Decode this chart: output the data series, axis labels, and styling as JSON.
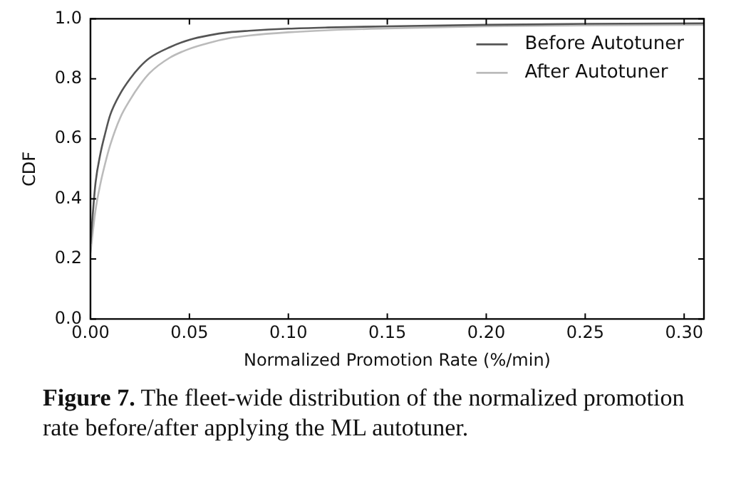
{
  "chart_data": {
    "type": "line",
    "xlabel": "Normalized Promotion Rate (%/min)",
    "ylabel": "CDF",
    "annotations": [
      "Figure 7.",
      "The fleet-wide distribution of the normalized promotion rate before/after applying the ML autotuner."
    ],
    "xlim": [
      0,
      0.31
    ],
    "xticks": [
      {
        "value": 0,
        "label": "0.00"
      },
      {
        "value": 0.05,
        "label": "0.05"
      },
      {
        "value": 0.1,
        "label": "0.10"
      },
      {
        "value": 0.15,
        "label": "0.15"
      },
      {
        "value": 0.2,
        "label": "0.20"
      },
      {
        "value": 0.25,
        "label": "0.25"
      },
      {
        "value": 0.3,
        "label": "0.30"
      }
    ],
    "ylim": [
      0,
      1
    ],
    "yticks": [
      {
        "value": 0,
        "label": "0.0"
      },
      {
        "value": 0.2,
        "label": "0.2"
      },
      {
        "value": 0.4,
        "label": "0.4"
      },
      {
        "value": 0.6,
        "label": "0.6"
      },
      {
        "value": 0.8,
        "label": "0.8"
      },
      {
        "value": 1,
        "label": "1.0"
      }
    ],
    "grid": false,
    "legend": "top right",
    "marker": "none",
    "line_style": "solid",
    "x": [
      0,
      0.0025,
      0.005,
      0.0075,
      0.01,
      0.015,
      0.02,
      0.025,
      0.03,
      0.04,
      0.05,
      0.06,
      0.07,
      0.08,
      0.1,
      0.12,
      0.15,
      0.2,
      0.25,
      0.31
    ],
    "series": [
      {
        "name": "Before Autotuner",
        "color": "#555555",
        "values": [
          0.25,
          0.45,
          0.55,
          0.62,
          0.68,
          0.75,
          0.8,
          0.84,
          0.87,
          0.905,
          0.93,
          0.945,
          0.955,
          0.96,
          0.967,
          0.971,
          0.975,
          0.98,
          0.983,
          0.985
        ]
      },
      {
        "name": "After Autotuner",
        "color": "#bbbbbb",
        "values": [
          0.22,
          0.36,
          0.45,
          0.52,
          0.58,
          0.67,
          0.73,
          0.78,
          0.82,
          0.87,
          0.9,
          0.92,
          0.935,
          0.944,
          0.955,
          0.962,
          0.968,
          0.975,
          0.978,
          0.98
        ]
      }
    ]
  }
}
